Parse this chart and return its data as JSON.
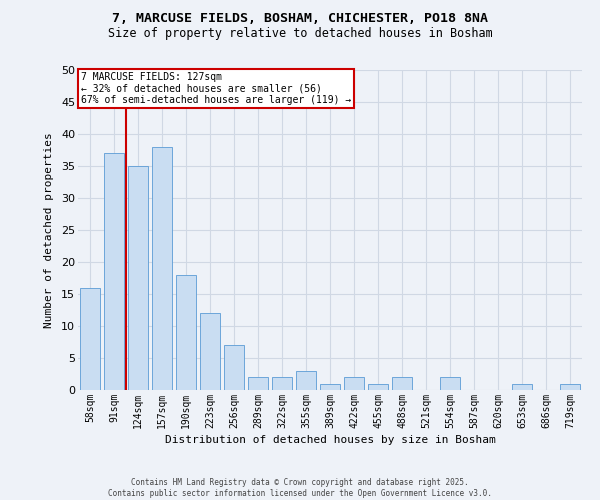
{
  "title_line1": "7, MARCUSE FIELDS, BOSHAM, CHICHESTER, PO18 8NA",
  "title_line2": "Size of property relative to detached houses in Bosham",
  "xlabel": "Distribution of detached houses by size in Bosham",
  "ylabel": "Number of detached properties",
  "categories": [
    "58sqm",
    "91sqm",
    "124sqm",
    "157sqm",
    "190sqm",
    "223sqm",
    "256sqm",
    "289sqm",
    "322sqm",
    "355sqm",
    "389sqm",
    "422sqm",
    "455sqm",
    "488sqm",
    "521sqm",
    "554sqm",
    "587sqm",
    "620sqm",
    "653sqm",
    "686sqm",
    "719sqm"
  ],
  "values": [
    16,
    37,
    35,
    38,
    18,
    12,
    7,
    2,
    2,
    3,
    1,
    2,
    1,
    2,
    0,
    2,
    0,
    0,
    1,
    0,
    1
  ],
  "bar_color": "#c9ddf2",
  "bar_edge_color": "#5b9bd5",
  "grid_color": "#d0d8e4",
  "background_color": "#eef2f8",
  "red_line_after_index": 1,
  "annotation_title": "7 MARCUSE FIELDS: 127sqm",
  "annotation_line2": "← 32% of detached houses are smaller (56)",
  "annotation_line3": "67% of semi-detached houses are larger (119) →",
  "annotation_box_color": "#ffffff",
  "annotation_border_color": "#cc0000",
  "footer_line1": "Contains HM Land Registry data © Crown copyright and database right 2025.",
  "footer_line2": "Contains public sector information licensed under the Open Government Licence v3.0.",
  "ylim": [
    0,
    50
  ],
  "yticks": [
    0,
    5,
    10,
    15,
    20,
    25,
    30,
    35,
    40,
    45,
    50
  ]
}
